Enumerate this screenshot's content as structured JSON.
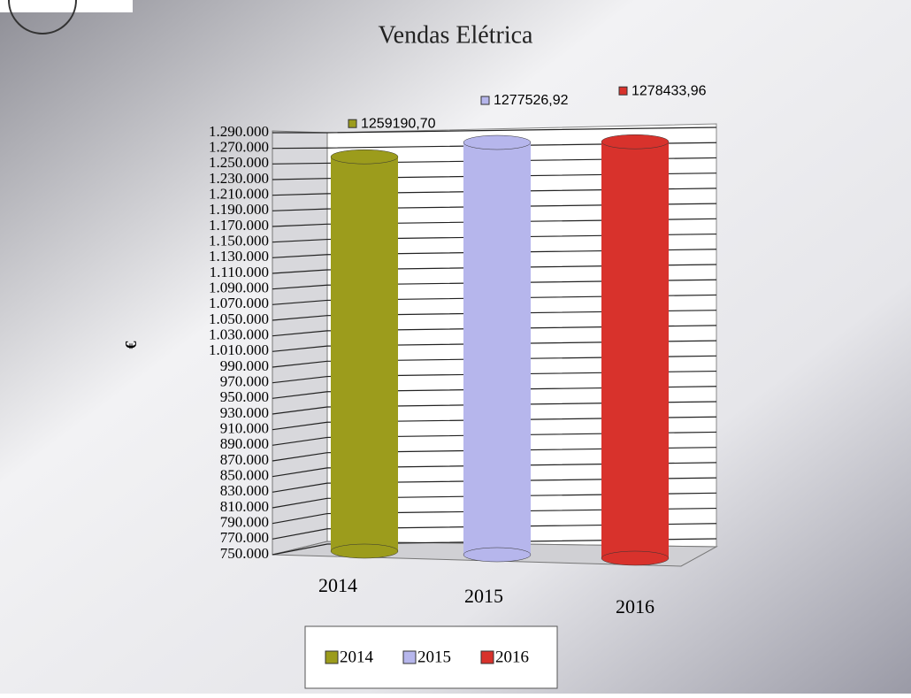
{
  "chart_data": {
    "type": "bar",
    "title": "Vendas Elétrica",
    "y_label": "€",
    "categories": [
      "2014",
      "2015",
      "2016"
    ],
    "values": [
      1259190.7,
      1277526.92,
      1278433.96
    ],
    "value_labels": [
      "1259190,70",
      "1277526,92",
      "1278433,96"
    ],
    "colors": [
      "#9c9c1c",
      "#b6b6ec",
      "#d8322c"
    ],
    "ylim": [
      750000,
      1290000
    ],
    "yticks": [
      {
        "value": 750000,
        "label": "750.000"
      },
      {
        "value": 770000,
        "label": "770.000"
      },
      {
        "value": 790000,
        "label": "790.000"
      },
      {
        "value": 810000,
        "label": "810.000"
      },
      {
        "value": 830000,
        "label": "830.000"
      },
      {
        "value": 850000,
        "label": "850.000"
      },
      {
        "value": 870000,
        "label": "870.000"
      },
      {
        "value": 890000,
        "label": "890.000"
      },
      {
        "value": 910000,
        "label": "910.000"
      },
      {
        "value": 930000,
        "label": "930.000"
      },
      {
        "value": 950000,
        "label": "950.000"
      },
      {
        "value": 970000,
        "label": "970.000"
      },
      {
        "value": 990000,
        "label": "990.000"
      },
      {
        "value": 1010000,
        "label": "1.010.000"
      },
      {
        "value": 1030000,
        "label": "1.030.000"
      },
      {
        "value": 1050000,
        "label": "1.050.000"
      },
      {
        "value": 1070000,
        "label": "1.070.000"
      },
      {
        "value": 1090000,
        "label": "1.090.000"
      },
      {
        "value": 1110000,
        "label": "1.110.000"
      },
      {
        "value": 1130000,
        "label": "1.130.000"
      },
      {
        "value": 1150000,
        "label": "1.150.000"
      },
      {
        "value": 1170000,
        "label": "1.170.000"
      },
      {
        "value": 1190000,
        "label": "1.190.000"
      },
      {
        "value": 1210000,
        "label": "1.210.000"
      },
      {
        "value": 1230000,
        "label": "1.230.000"
      },
      {
        "value": 1250000,
        "label": "1.250.000"
      },
      {
        "value": 1270000,
        "label": "1.270.000"
      },
      {
        "value": 1290000,
        "label": "1.290.000"
      }
    ],
    "grid": true,
    "legend": "bottom"
  }
}
